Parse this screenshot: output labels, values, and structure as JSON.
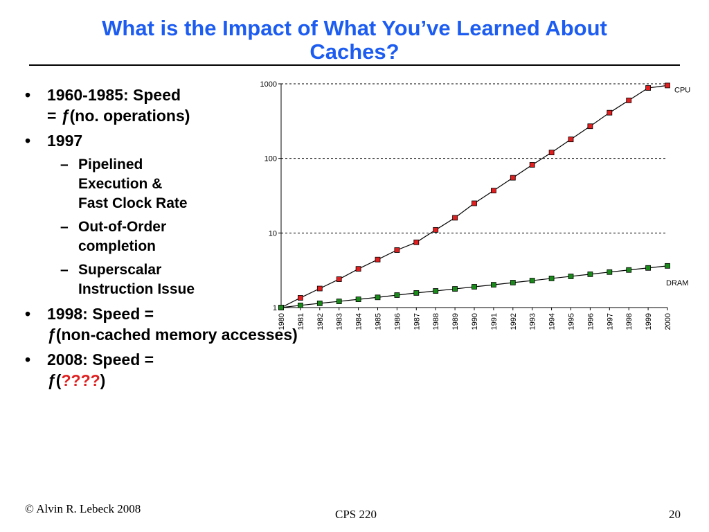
{
  "slide": {
    "title_line1": "What is the Impact of What You’ve Learned About",
    "title_line2": "Caches?",
    "bullets": [
      {
        "line1": "1960-1985: Speed",
        "line2_prefix": "= ",
        "fn": "ƒ",
        "line2_rest": "(no. operations)"
      },
      {
        "text": "1997"
      },
      {
        "text": "1998: Speed =",
        "fn": "ƒ",
        "line2_rest": "(non-cached memory accesses)"
      },
      {
        "text": "2008: Speed =",
        "fn": "ƒ",
        "open": "(",
        "emph": "????",
        "close": ")"
      }
    ],
    "sub_bullets": [
      {
        "lines": [
          "Pipelined",
          "Execution &",
          "Fast Clock Rate"
        ]
      },
      {
        "lines": [
          "Out-of-Order",
          "completion"
        ]
      },
      {
        "lines": [
          "Superscalar",
          "Instruction Issue"
        ]
      }
    ],
    "bullet_glyph": "•",
    "dash_glyph": "–",
    "footer": {
      "left": "© Alvin R. Lebeck 2008",
      "center": "CPS 220",
      "page": "20"
    }
  },
  "colors": {
    "title": "#1c5cf0",
    "emphasis": "#e02020",
    "cpu_marker": "#e02020",
    "dram_marker": "#1a8a1a"
  },
  "chart_data": {
    "type": "line",
    "x": [
      "1980",
      "1981",
      "1982",
      "1983",
      "1984",
      "1985",
      "1986",
      "1987",
      "1988",
      "1989",
      "1990",
      "1991",
      "1992",
      "1993",
      "1994",
      "1995",
      "1996",
      "1997",
      "1998",
      "1999",
      "2000"
    ],
    "series": [
      {
        "name": "CPU",
        "values": [
          1,
          1.35,
          1.8,
          2.4,
          3.3,
          4.4,
          5.9,
          7.5,
          11,
          16,
          25,
          37,
          55,
          82,
          120,
          180,
          270,
          410,
          600,
          880,
          950
        ]
      },
      {
        "name": "DRAM",
        "values": [
          1,
          1.07,
          1.14,
          1.21,
          1.29,
          1.37,
          1.47,
          1.57,
          1.67,
          1.78,
          1.9,
          2.02,
          2.16,
          2.3,
          2.46,
          2.62,
          2.8,
          2.99,
          3.19,
          3.4,
          3.62
        ]
      }
    ],
    "yscale": "log",
    "ylim": [
      1,
      1000
    ],
    "yticks": [
      "1",
      "10",
      "100",
      "1000"
    ],
    "grid": "dashed horizontal at decades",
    "xlabel": "",
    "ylabel": ""
  }
}
